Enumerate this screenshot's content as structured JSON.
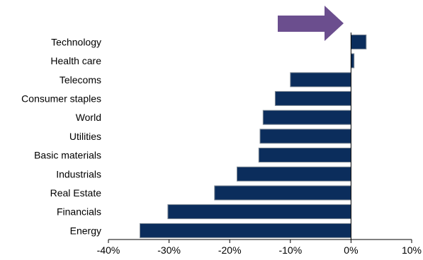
{
  "chart_data": {
    "type": "bar",
    "orientation": "horizontal",
    "categories": [
      "Technology",
      "Health care",
      "Telecoms",
      "Consumer staples",
      "World",
      "Utilities",
      "Basic materials",
      "Industrials",
      "Real Estate",
      "Financials",
      "Energy"
    ],
    "values": [
      2.5,
      0.5,
      -10,
      -12.5,
      -14.5,
      -15,
      -15.2,
      -18.8,
      -22.5,
      -30.2,
      -34.8
    ],
    "xlim": [
      -40,
      10
    ],
    "xticks": [
      -40,
      -30,
      -20,
      -10,
      0,
      10
    ],
    "xtick_labels": [
      "-40%",
      "-30%",
      "-20%",
      "-10%",
      "0%",
      "10%"
    ],
    "title": "",
    "xlabel": "",
    "ylabel": "",
    "grid": false,
    "legend": "none",
    "bar_color": "#0b2d5c",
    "annotation": {
      "shape": "arrow",
      "direction": "right",
      "color": "#6b4e8e",
      "target": "Technology"
    }
  }
}
